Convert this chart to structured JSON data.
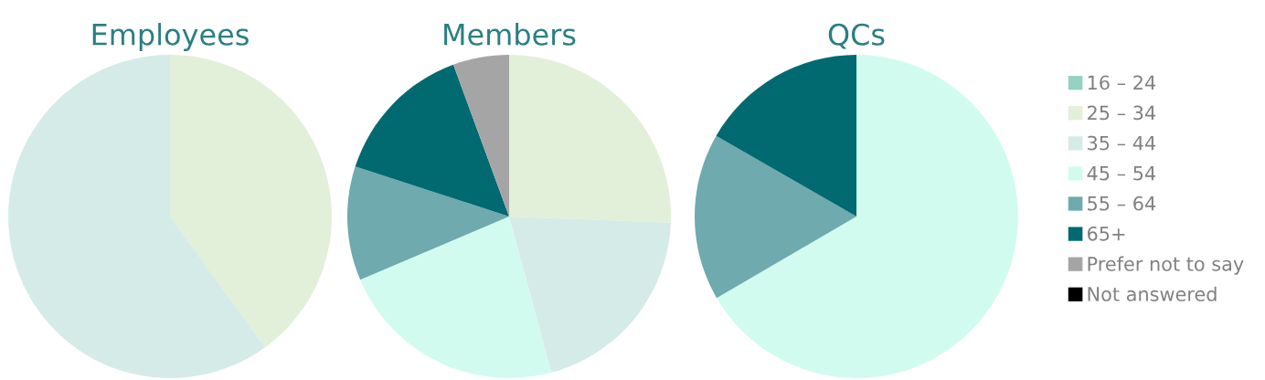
{
  "chart_data": [
    {
      "type": "pie",
      "title": "Employees",
      "categories": [
        "16 – 24",
        "25 – 34",
        "35 – 44",
        "45 – 54",
        "55 – 64",
        "65+",
        "Prefer not to say",
        "Not answered"
      ],
      "values": [
        0,
        40,
        60,
        0,
        0,
        0,
        0,
        0
      ],
      "colors": [
        "#95d1c5",
        "#e2efd9",
        "#d5ebe8",
        "#d2fbef",
        "#6eaaae",
        "#006a70",
        "#a5a5a5",
        "#000000"
      ],
      "legend": "right"
    },
    {
      "type": "pie",
      "title": "Members",
      "categories": [
        null,
        null,
        null,
        null,
        null,
        null,
        null,
        null
      ],
      "values": [
        0,
        25.6,
        20.2,
        22.8,
        11.4,
        14.4,
        5.6,
        0
      ],
      "colors": [
        "#95d1c5",
        "#e2efd9",
        "#d5ebe8",
        "#d2fbef",
        "#6eaaae",
        "#006a70",
        "#a5a5a5",
        "#000000"
      ]
    },
    {
      "type": "pie",
      "title": "QCs",
      "categories": [
        null,
        null,
        null,
        null,
        null,
        null,
        null,
        null
      ],
      "values": [
        0,
        0,
        0,
        66.6,
        16.7,
        16.7,
        0,
        0
      ],
      "colors": [
        "#95d1c5",
        "#e2efd9",
        "#d5ebe8",
        "#d2fbef",
        "#6eaaae",
        "#006a70",
        "#a5a5a5",
        "#000000"
      ]
    }
  ]
}
